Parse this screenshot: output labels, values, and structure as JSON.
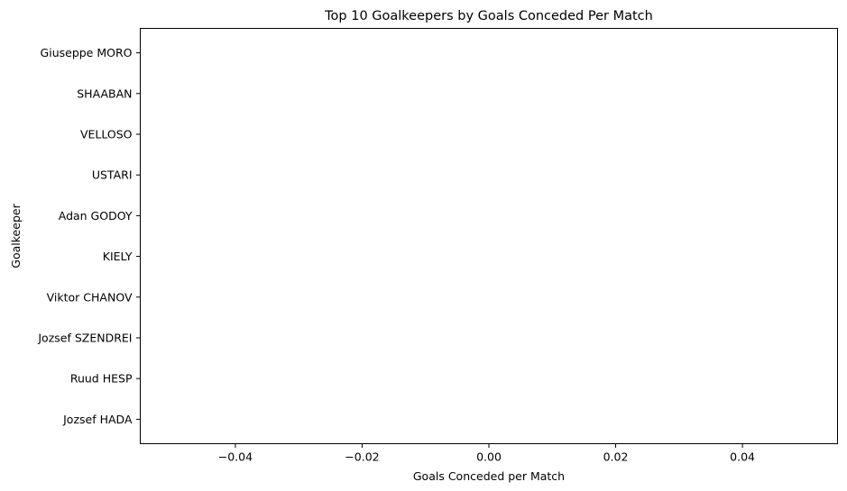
{
  "chart_data": {
    "type": "bar",
    "orientation": "horizontal",
    "title": "Top 10 Goalkeepers by Goals Conceded Per Match",
    "xlabel": "Goals Conceded per Match",
    "ylabel": "Goalkeeper",
    "categories": [
      "Jozsef HADA",
      "Ruud HESP",
      "Jozsef SZENDREI",
      "Viktor CHANOV",
      "KIELY",
      "Adan GODOY",
      "USTARI",
      "VELLOSO",
      "SHAABAN",
      "Giuseppe MORO"
    ],
    "values": [
      0,
      0,
      0,
      0,
      0,
      0,
      0,
      0,
      0,
      0
    ],
    "xlim": [
      -0.055,
      0.055
    ],
    "xticks": [
      -0.04,
      -0.02,
      0.0,
      0.02,
      0.04
    ],
    "xtick_labels": [
      "−0.04",
      "−0.02",
      "0.00",
      "0.02",
      "0.04"
    ],
    "grid": false,
    "bar_color": "#1f77b4"
  }
}
